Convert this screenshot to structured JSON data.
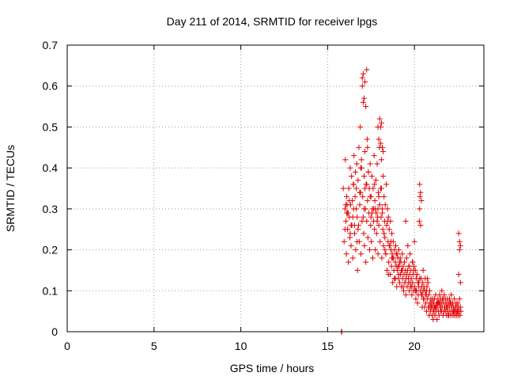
{
  "chart_data": {
    "type": "scatter",
    "title": "Day 211 of 2014, SRMTID for receiver lpgs",
    "xlabel": "GPS time / hours",
    "ylabel": "SRMTID / TECUs",
    "xlim": [
      0,
      24
    ],
    "ylim": [
      0,
      0.7
    ],
    "xticks": [
      0,
      5,
      10,
      15,
      20
    ],
    "yticks": [
      0,
      0.1,
      0.2,
      0.3,
      0.4,
      0.5,
      0.6,
      0.7
    ],
    "xtick_labels": [
      "0",
      "5",
      "10",
      "15",
      "20"
    ],
    "ytick_labels": [
      "0",
      "0.1",
      "0.2",
      "0.3",
      "0.4",
      "0.5",
      "0.6",
      "0.7"
    ],
    "grid": true,
    "marker": "+",
    "color": "#e00000",
    "series": [
      {
        "name": "SRMTID",
        "x": [
          15.8,
          15.82,
          15.9,
          15.95,
          16.0,
          16.02,
          16.05,
          16.08,
          16.1,
          16.12,
          16.15,
          16.18,
          16.2,
          16.22,
          16.25,
          16.28,
          16.3,
          16.32,
          16.35,
          16.38,
          16.4,
          16.42,
          16.45,
          16.48,
          16.5,
          16.52,
          16.55,
          16.58,
          16.6,
          16.62,
          16.65,
          16.68,
          16.7,
          16.72,
          16.75,
          16.78,
          16.8,
          16.82,
          16.85,
          16.88,
          16.9,
          16.92,
          16.95,
          16.98,
          17.0,
          17.02,
          17.05,
          17.08,
          17.1,
          17.12,
          17.15,
          17.18,
          17.2,
          17.22,
          17.25,
          17.28,
          17.3,
          17.32,
          17.35,
          17.38,
          17.4,
          17.42,
          17.45,
          17.48,
          17.5,
          17.52,
          17.55,
          17.58,
          17.6,
          17.62,
          17.65,
          17.68,
          17.7,
          17.72,
          17.75,
          17.78,
          17.8,
          17.82,
          17.85,
          17.88,
          17.9,
          17.92,
          17.95,
          17.98,
          18.0,
          18.02,
          18.05,
          18.08,
          18.1,
          18.12,
          18.15,
          18.18,
          18.2,
          18.22,
          18.25,
          18.28,
          18.3,
          18.32,
          18.35,
          18.38,
          18.4,
          18.42,
          18.45,
          18.48,
          18.5,
          18.52,
          18.55,
          18.58,
          18.6,
          18.62,
          18.65,
          18.68,
          18.7,
          18.72,
          18.75,
          18.78,
          18.8,
          18.82,
          18.85,
          18.88,
          18.9,
          18.92,
          18.95,
          18.98,
          19.0,
          19.02,
          19.05,
          19.08,
          19.1,
          19.12,
          19.15,
          19.18,
          19.2,
          19.22,
          19.25,
          19.28,
          19.3,
          19.32,
          19.35,
          19.38,
          19.4,
          19.42,
          19.45,
          19.48,
          19.5,
          19.52,
          19.55,
          19.58,
          19.6,
          19.62,
          19.65,
          19.68,
          19.7,
          19.72,
          19.75,
          19.78,
          19.8,
          19.82,
          19.85,
          19.88,
          19.9,
          19.92,
          19.95,
          19.98,
          20.0,
          20.02,
          20.05,
          20.08,
          20.1,
          20.12,
          20.15,
          20.18,
          20.2,
          20.22,
          20.25,
          20.28,
          20.3,
          20.32,
          20.35,
          20.38,
          20.4,
          20.42,
          20.45,
          20.48,
          20.5,
          20.52,
          20.55,
          20.58,
          20.6,
          20.62,
          20.65,
          20.68,
          20.7,
          20.72,
          20.75,
          20.78,
          20.8,
          20.82,
          20.85,
          20.88,
          20.9,
          20.92,
          20.95,
          20.98,
          21.0,
          21.02,
          21.05,
          21.08,
          21.1,
          21.12,
          21.15,
          21.18,
          21.2,
          21.22,
          21.25,
          21.28,
          21.3,
          21.32,
          21.35,
          21.38,
          21.4,
          21.42,
          21.45,
          21.48,
          21.5,
          21.52,
          21.55,
          21.58,
          21.6,
          21.62,
          21.65,
          21.68,
          21.7,
          21.72,
          21.75,
          21.78,
          21.8,
          21.82,
          21.85,
          21.88,
          21.9,
          21.92,
          21.95,
          21.98,
          22.0,
          22.02,
          22.05,
          22.08,
          22.1,
          22.12,
          22.15,
          22.18,
          22.2,
          22.22,
          22.25,
          22.28,
          22.3,
          22.32,
          22.35,
          22.38,
          22.4,
          22.42,
          22.45,
          22.48,
          22.5,
          22.52,
          22.55,
          22.58,
          22.6,
          22.62,
          22.65,
          22.68,
          16.0,
          16.1,
          16.3,
          16.5,
          16.7,
          16.9,
          17.1,
          17.3,
          17.5,
          17.7,
          17.9,
          18.1,
          18.3,
          18.5,
          18.7,
          18.9,
          19.1,
          19.3,
          19.5,
          19.7,
          19.9,
          20.1,
          20.3,
          20.5,
          20.7,
          20.9,
          21.1,
          21.3,
          21.5,
          21.7,
          21.9,
          22.1,
          22.3,
          22.5,
          16.05,
          16.25,
          16.45,
          16.65,
          16.85,
          17.05,
          17.25,
          17.45,
          17.65,
          17.85,
          18.05,
          18.25,
          18.45,
          18.65,
          18.85,
          19.05,
          19.25,
          19.45,
          19.65,
          19.85,
          20.05,
          20.25,
          20.45,
          20.65,
          20.85,
          21.05,
          21.25,
          21.45,
          21.65,
          21.85,
          22.05,
          22.25,
          22.45,
          22.6,
          16.15,
          16.35,
          16.55,
          16.75,
          16.95,
          17.15,
          17.35,
          17.55,
          17.75,
          17.95,
          18.15,
          18.35,
          18.55,
          18.75,
          18.95,
          19.15,
          19.35,
          19.55,
          19.75,
          19.95,
          20.15,
          20.35,
          20.55,
          20.75,
          20.95,
          21.15,
          21.35,
          21.55,
          21.75,
          21.95,
          22.15,
          22.35,
          22.55,
          22.65,
          17.0,
          17.05,
          17.1,
          17.15,
          17.2,
          17.25,
          17.9,
          17.95,
          18.0,
          18.05,
          18.1,
          18.15,
          18.2,
          20.3,
          20.35,
          20.4,
          22.55,
          22.6,
          22.65
        ],
        "y": [
          0.0,
          0.0,
          0.35,
          0.22,
          0.3,
          0.42,
          0.27,
          0.19,
          0.33,
          0.31,
          0.25,
          0.29,
          0.17,
          0.35,
          0.28,
          0.23,
          0.4,
          0.31,
          0.21,
          0.38,
          0.26,
          0.32,
          0.18,
          0.36,
          0.3,
          0.43,
          0.24,
          0.33,
          0.39,
          0.2,
          0.35,
          0.41,
          0.28,
          0.15,
          0.37,
          0.26,
          0.45,
          0.22,
          0.31,
          0.5,
          0.34,
          0.19,
          0.42,
          0.27,
          0.62,
          0.33,
          0.56,
          0.24,
          0.38,
          0.21,
          0.44,
          0.3,
          0.17,
          0.36,
          0.27,
          0.47,
          0.32,
          0.23,
          0.39,
          0.29,
          0.35,
          0.2,
          0.41,
          0.26,
          0.33,
          0.22,
          0.38,
          0.3,
          0.18,
          0.35,
          0.27,
          0.43,
          0.25,
          0.32,
          0.2,
          0.37,
          0.29,
          0.24,
          0.41,
          0.28,
          0.19,
          0.34,
          0.26,
          0.45,
          0.31,
          0.22,
          0.5,
          0.28,
          0.35,
          0.18,
          0.3,
          0.25,
          0.38,
          0.21,
          0.33,
          0.27,
          0.23,
          0.31,
          0.19,
          0.36,
          0.26,
          0.15,
          0.3,
          0.22,
          0.28,
          0.17,
          0.25,
          0.21,
          0.14,
          0.27,
          0.2,
          0.16,
          0.24,
          0.19,
          0.12,
          0.22,
          0.18,
          0.15,
          0.2,
          0.13,
          0.17,
          0.21,
          0.16,
          0.11,
          0.19,
          0.15,
          0.18,
          0.13,
          0.2,
          0.16,
          0.12,
          0.18,
          0.14,
          0.17,
          0.11,
          0.15,
          0.19,
          0.13,
          0.16,
          0.1,
          0.14,
          0.17,
          0.12,
          0.15,
          0.27,
          0.13,
          0.18,
          0.11,
          0.15,
          0.21,
          0.12,
          0.16,
          0.1,
          0.14,
          0.19,
          0.11,
          0.15,
          0.13,
          0.09,
          0.17,
          0.12,
          0.14,
          0.1,
          0.16,
          0.22,
          0.11,
          0.15,
          0.08,
          0.13,
          0.1,
          0.14,
          0.07,
          0.12,
          0.09,
          0.11,
          0.27,
          0.3,
          0.33,
          0.26,
          0.13,
          0.09,
          0.11,
          0.06,
          0.12,
          0.15,
          0.08,
          0.11,
          0.06,
          0.1,
          0.13,
          0.07,
          0.09,
          0.05,
          0.11,
          0.08,
          0.12,
          0.06,
          0.09,
          0.04,
          0.1,
          0.07,
          0.05,
          0.08,
          0.06,
          0.07,
          0.04,
          0.06,
          0.03,
          0.07,
          0.05,
          0.08,
          0.04,
          0.06,
          0.09,
          0.05,
          0.07,
          0.03,
          0.06,
          0.08,
          0.05,
          0.07,
          0.04,
          0.09,
          0.06,
          0.08,
          0.05,
          0.07,
          0.1,
          0.06,
          0.08,
          0.04,
          0.07,
          0.05,
          0.09,
          0.06,
          0.08,
          0.05,
          0.07,
          0.04,
          0.06,
          0.08,
          0.05,
          0.07,
          0.04,
          0.06,
          0.08,
          0.05,
          0.07,
          0.04,
          0.09,
          0.06,
          0.05,
          0.07,
          0.04,
          0.06,
          0.05,
          0.08,
          0.04,
          0.06,
          0.05,
          0.07,
          0.04,
          0.06,
          0.05,
          0.07,
          0.04,
          0.06,
          0.05,
          0.08,
          0.04,
          0.06,
          0.05,
          0.25,
          0.29,
          0.24,
          0.36,
          0.22,
          0.4,
          0.3,
          0.45,
          0.28,
          0.36,
          0.3,
          0.42,
          0.2,
          0.14,
          0.18,
          0.13,
          0.14,
          0.15,
          0.09,
          0.16,
          0.17,
          0.1,
          0.13,
          0.1,
          0.1,
          0.07,
          0.05,
          0.07,
          0.06,
          0.05,
          0.06,
          0.07,
          0.05,
          0.05,
          0.31,
          0.32,
          0.28,
          0.3,
          0.34,
          0.28,
          0.36,
          0.33,
          0.3,
          0.27,
          0.35,
          0.24,
          0.27,
          0.22,
          0.13,
          0.16,
          0.15,
          0.12,
          0.13,
          0.11,
          0.1,
          0.12,
          0.09,
          0.09,
          0.06,
          0.08,
          0.06,
          0.07,
          0.08,
          0.06,
          0.07,
          0.05,
          0.05,
          0.2,
          0.29,
          0.26,
          0.26,
          0.25,
          0.4,
          0.35,
          0.39,
          0.29,
          0.3,
          0.33,
          0.29,
          0.19,
          0.21,
          0.18,
          0.19,
          0.17,
          0.11,
          0.14,
          0.12,
          0.15,
          0.14,
          0.1,
          0.08,
          0.13,
          0.06,
          0.06,
          0.07,
          0.05,
          0.06,
          0.04,
          0.06,
          0.06,
          0.14,
          0.12,
          0.6,
          0.63,
          0.57,
          0.61,
          0.55,
          0.64,
          0.5,
          0.47,
          0.52,
          0.46,
          0.51,
          0.45,
          0.44,
          0.36,
          0.34,
          0.32,
          0.24,
          0.22,
          0.21
        ]
      }
    ]
  }
}
